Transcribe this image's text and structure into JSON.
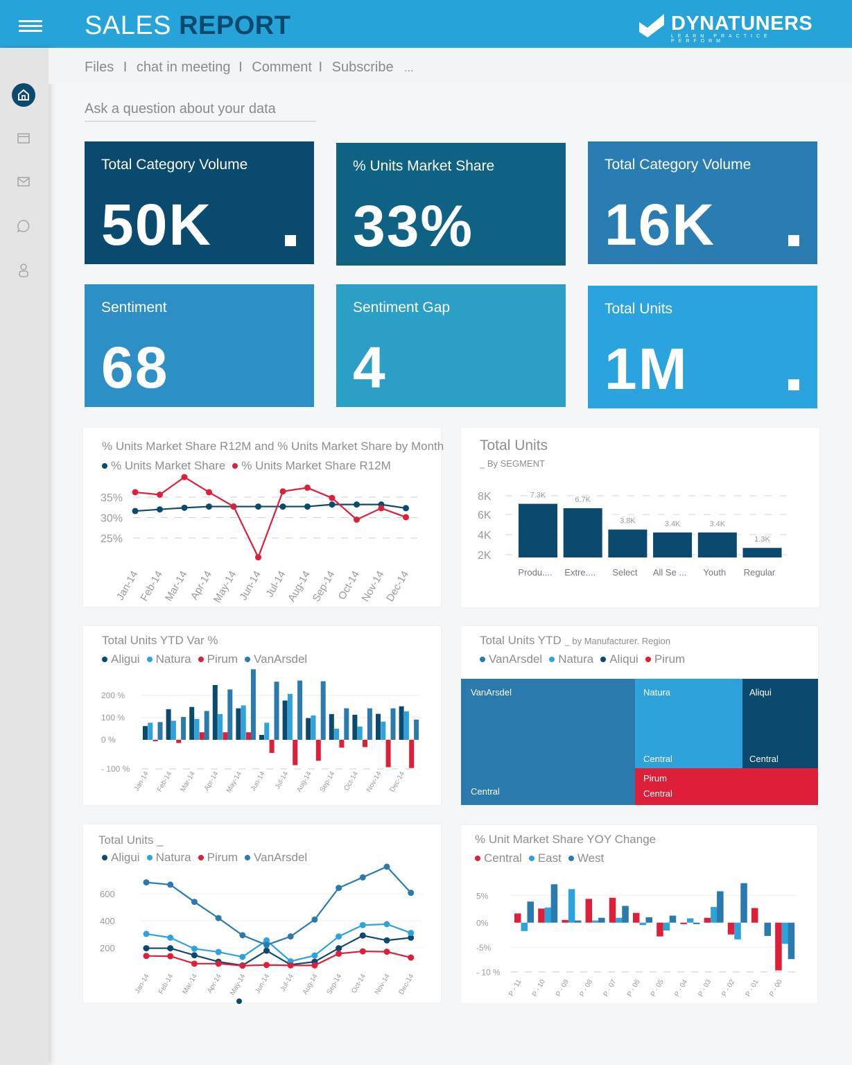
{
  "header": {
    "title_light": "SALES",
    "title_bold": "REPORT",
    "logo_text": "DYNATUNERS",
    "logo_tagline": "LEARN PRACTICE PERFORM",
    "menu_icon": "hamburger-icon"
  },
  "sidebar": {
    "items": [
      {
        "icon": "home-icon",
        "active": true
      },
      {
        "icon": "calendar-icon"
      },
      {
        "icon": "mail-icon"
      },
      {
        "icon": "chat-icon"
      },
      {
        "icon": "user-icon"
      }
    ]
  },
  "nav": {
    "items": [
      "Files",
      "chat in meeting",
      "Comment",
      "Subscribe",
      "..."
    ],
    "separator": "I"
  },
  "search": {
    "placeholder": "Ask a question about your data",
    "value": ""
  },
  "colors": {
    "header": "#26a4da",
    "aligui": "#0b4a6e",
    "natura": "#2ea3db",
    "pirum": "#dd1f3a",
    "vanarsdel": "#2a7aae"
  },
  "tiles": [
    {
      "title": "Total Category Volume",
      "value": "50K",
      "color": "#0a4a6e",
      "dot": true
    },
    {
      "title": "% Units Market Share",
      "value": "33%",
      "color": "#106284",
      "dot": false
    },
    {
      "title": "Total Category Volume",
      "value": "16K",
      "color": "#2a7db3",
      "dot": true
    },
    {
      "title": "Sentiment",
      "value": "68",
      "color": "#2e8fc6",
      "dot": false
    },
    {
      "title": "Sentiment Gap",
      "value": "4",
      "color": "#2c9fc7",
      "dot": false
    },
    {
      "title": "Total Units",
      "value": "1M",
      "color": "#2aa3de",
      "dot": true
    }
  ],
  "chart_data": [
    {
      "type": "line",
      "title": "% Units Market Share R12M and % Units Market Share by Month",
      "categories": [
        "Jan-14",
        "Feb-14",
        "Mar-14",
        "Apr-14",
        "May-14",
        "Jun-14",
        "Jul-14",
        "Aug-14",
        "Sep-14",
        "Oct-14",
        "Nov-14",
        "Dec-14"
      ],
      "yticks": [
        "35%",
        "30%",
        "25%"
      ],
      "series": [
        {
          "name": "% Units Market Share",
          "color": "#0b4a6e",
          "values": [
            31.6,
            32.0,
            32.4,
            32.7,
            32.7,
            32.7,
            32.7,
            32.7,
            33.2,
            33.2,
            33.2,
            32.3
          ]
        },
        {
          "name": "% Units Market Share  R12M",
          "color": "#dd1f3a",
          "values": [
            36.2,
            35.6,
            39.9,
            36.2,
            32.7,
            20.3,
            36.4,
            37.3,
            34.8,
            29.5,
            32.3,
            30.1
          ]
        }
      ],
      "grid": true,
      "legend": "top-left"
    },
    {
      "type": "bar",
      "title": "Total Units",
      "subtitle": "_ By SEGMENT",
      "categories": [
        "Produ....",
        "Extre....",
        "Select",
        "All Se ...",
        "Youth",
        "Regular"
      ],
      "values": [
        7300,
        6700,
        3800,
        3400,
        3400,
        1300
      ],
      "data_labels": [
        "7.3K",
        "6.7K",
        "3.8K",
        "3.4K",
        "3.4K",
        "1.3K"
      ],
      "yticks": [
        "8K",
        "6K",
        "4K",
        "2K"
      ],
      "grid": true
    },
    {
      "type": "bar",
      "title": "Total Units YTD Var %",
      "categories": [
        "Jan-14",
        "Feb-14",
        "Mar-14",
        "Apr-14",
        "May-14",
        "Jun-14",
        "Jul-14",
        "Aug-14",
        "Sep-14",
        "Oct-14",
        "Nov-14",
        "Dec-14"
      ],
      "yticks": [
        "200 %",
        "100 %",
        "0 %",
        "- 100 %"
      ],
      "series": [
        {
          "name": "Aligui",
          "color": "#0b4a6e",
          "values": [
            62,
            138,
            148,
            247,
            142,
            22,
            177,
            98,
            116,
            113,
            117,
            151
          ]
        },
        {
          "name": "Natura",
          "color": "#2ea3db",
          "values": [
            77,
            86,
            94,
            116,
            155,
            77,
            207,
            110,
            50,
            60,
            82,
            128
          ]
        },
        {
          "name": "Pirum",
          "color": "#dd1f3a",
          "values": [
            -5,
            -11,
            34,
            34,
            34,
            -45,
            -87,
            -72,
            -27,
            -25,
            -94,
            -97
          ]
        },
        {
          "name": "VanArsdel",
          "color": "#2a7aae",
          "values": [
            80,
            103,
            130,
            227,
            318,
            262,
            267,
            264,
            142,
            142,
            142,
            91
          ]
        }
      ],
      "legend": "top-left"
    },
    {
      "type": "treemap",
      "title": "Total Units YTD",
      "subtitle": "_ by Manufacturer. Region",
      "legend_items": [
        {
          "name": "VanArsdel",
          "color": "#2a7aae"
        },
        {
          "name": "Natura",
          "color": "#2ea3db"
        },
        {
          "name": "Aliqui",
          "color": "#0b4a6e"
        },
        {
          "name": "Pirum",
          "color": "#dd1f3a"
        }
      ],
      "cells": [
        {
          "name": "VanArsdel",
          "region": "Central",
          "color": "#2a7aae"
        },
        {
          "name": "Natura",
          "region": "Central",
          "color": "#2ea3db"
        },
        {
          "name": "Aliqui",
          "region": "Central",
          "color": "#0b4a6e"
        },
        {
          "name": "Pirum",
          "region": "Central",
          "color": "#dd1f3a"
        }
      ]
    },
    {
      "type": "line",
      "title": "Total Units _",
      "categories": [
        "Jan-14",
        "Feb-14",
        "Mar-14",
        "Apr-14",
        "May-14",
        "Jun-14",
        "Jul-14",
        "Aug-14",
        "Sep-14",
        "Oct-14",
        "Nov-14",
        "Dec-14"
      ],
      "yticks": [
        "600",
        "400",
        "200"
      ],
      "series": [
        {
          "name": "Aligui",
          "color": "#0b4a6e",
          "values": [
            197,
            197,
            145,
            97,
            70,
            179,
            75,
            97,
            197,
            291,
            255,
            275
          ]
        },
        {
          "name": "Natura",
          "color": "#2ea3db",
          "values": [
            303,
            275,
            193,
            169,
            133,
            255,
            100,
            143,
            284,
            368,
            375,
            310
          ]
        },
        {
          "name": "Pirum",
          "color": "#dd1f3a",
          "values": [
            140,
            138,
            83,
            83,
            68,
            73,
            70,
            70,
            157,
            174,
            171,
            128
          ]
        },
        {
          "name": "VanArsdel",
          "color": "#2a7aae",
          "values": [
            684,
            667,
            540,
            420,
            293,
            221,
            284,
            409,
            643,
            721,
            800,
            607
          ]
        }
      ],
      "legend": "top-left"
    },
    {
      "type": "bar",
      "title": "% Unit Market Share YOY Change",
      "categories": [
        "P - 11",
        "P - 10",
        "P - 09",
        "P - 08",
        "P - 07",
        "P - 06",
        "P - 05",
        "P - 04",
        "P - 03",
        "P - 02",
        "P - 01",
        "P - 00"
      ],
      "yticks": [
        "5%",
        "0%",
        "-5%",
        "- 10 %"
      ],
      "series": [
        {
          "name": "Central",
          "color": "#dd1f3a",
          "values": [
            1.7,
            2.6,
            0.5,
            4.4,
            4.6,
            1.8,
            -2.8,
            -0.3,
            0.9,
            -2.4,
            2.7,
            -9.7
          ]
        },
        {
          "name": "East",
          "color": "#2ea3db",
          "values": [
            -1.7,
            2.8,
            6.2,
            0.4,
            0.9,
            -0.5,
            -1.6,
            0.8,
            2.9,
            -3.4,
            0,
            -4.3
          ]
        },
        {
          "name": "West",
          "color": "#2a7aae",
          "values": [
            3.9,
            7.1,
            0.4,
            0.9,
            3.1,
            1.0,
            1.3,
            -0.3,
            5.8,
            7.3,
            -2.7,
            -7.4
          ]
        }
      ],
      "legend": "top-left"
    }
  ]
}
